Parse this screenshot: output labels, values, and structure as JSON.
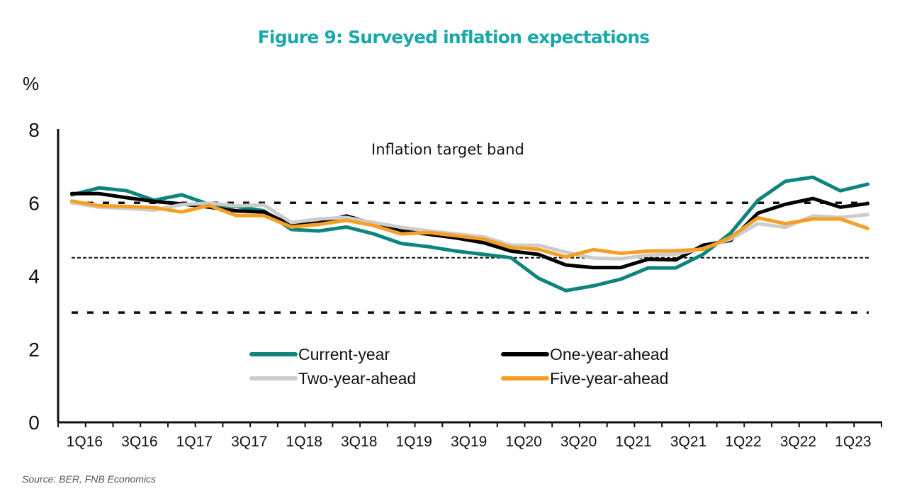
{
  "chart_data": {
    "type": "line",
    "title": "Figure 9: Surveyed inflation expectations",
    "ylabel": "%",
    "xlabel": "",
    "ylim": [
      0,
      8
    ],
    "yticks": [
      "0",
      "2",
      "4",
      "6",
      "8"
    ],
    "ytick_values": [
      0,
      2,
      4,
      6,
      8
    ],
    "x": [
      "1Q16",
      "2Q16",
      "3Q16",
      "4Q16",
      "1Q17",
      "2Q17",
      "3Q17",
      "4Q17",
      "1Q18",
      "2Q18",
      "3Q18",
      "4Q18",
      "1Q19",
      "2Q19",
      "3Q19",
      "4Q19",
      "1Q20",
      "2Q20",
      "3Q20",
      "4Q20",
      "1Q21",
      "2Q21",
      "3Q21",
      "4Q21",
      "1Q22",
      "2Q22",
      "3Q22",
      "4Q22",
      "1Q23",
      "2Q23"
    ],
    "xtick_labels": [
      "1Q16",
      "3Q16",
      "1Q17",
      "3Q17",
      "1Q18",
      "3Q18",
      "1Q19",
      "3Q19",
      "1Q20",
      "3Q20",
      "1Q21",
      "3Q21",
      "1Q22",
      "3Q22",
      "1Q23"
    ],
    "grid": false,
    "legend_position": "bottom-center",
    "annotations": [
      {
        "text": "Inflation target band"
      }
    ],
    "reference_lines": [
      {
        "y": 6,
        "style": "dashed"
      },
      {
        "y": 4.5,
        "style": "dotted"
      },
      {
        "y": 3,
        "style": "dashed"
      }
    ],
    "series": [
      {
        "name": "Current-year",
        "color": "#0e847d",
        "values": [
          6.22,
          6.41,
          6.33,
          6.07,
          6.22,
          5.96,
          5.9,
          5.78,
          5.27,
          5.23,
          5.34,
          5.15,
          4.89,
          4.8,
          4.68,
          4.59,
          4.5,
          3.94,
          3.6,
          3.73,
          3.91,
          4.22,
          4.22,
          4.59,
          5.17,
          6.07,
          6.59,
          6.7,
          6.33,
          6.51
        ]
      },
      {
        "name": "One-year-ahead",
        "color": "#000000",
        "values": [
          6.25,
          6.25,
          6.14,
          6.04,
          5.97,
          5.88,
          5.78,
          5.75,
          5.39,
          5.45,
          5.64,
          5.43,
          5.23,
          5.14,
          5.04,
          4.91,
          4.68,
          4.59,
          4.3,
          4.23,
          4.23,
          4.46,
          4.44,
          4.84,
          4.97,
          5.72,
          5.96,
          6.12,
          5.88,
          5.98
        ]
      },
      {
        "name": "Two-year-ahead",
        "color": "#cccccc",
        "values": [
          6.0,
          5.88,
          5.85,
          5.8,
          5.95,
          5.99,
          5.92,
          5.94,
          5.46,
          5.56,
          5.6,
          5.46,
          5.33,
          5.23,
          5.15,
          5.07,
          4.84,
          4.84,
          4.65,
          4.49,
          4.47,
          4.57,
          4.6,
          4.75,
          5.01,
          5.43,
          5.33,
          5.64,
          5.6,
          5.68
        ]
      },
      {
        "name": "Five-year-ahead",
        "color": "#f5a024",
        "values": [
          6.05,
          5.92,
          5.9,
          5.87,
          5.75,
          5.93,
          5.65,
          5.65,
          5.34,
          5.41,
          5.52,
          5.38,
          5.15,
          5.19,
          5.1,
          5.01,
          4.78,
          4.73,
          4.52,
          4.72,
          4.62,
          4.68,
          4.69,
          4.73,
          5.06,
          5.59,
          5.43,
          5.56,
          5.56,
          5.3
        ]
      }
    ],
    "source": "Source: BER, FNB Economics"
  }
}
